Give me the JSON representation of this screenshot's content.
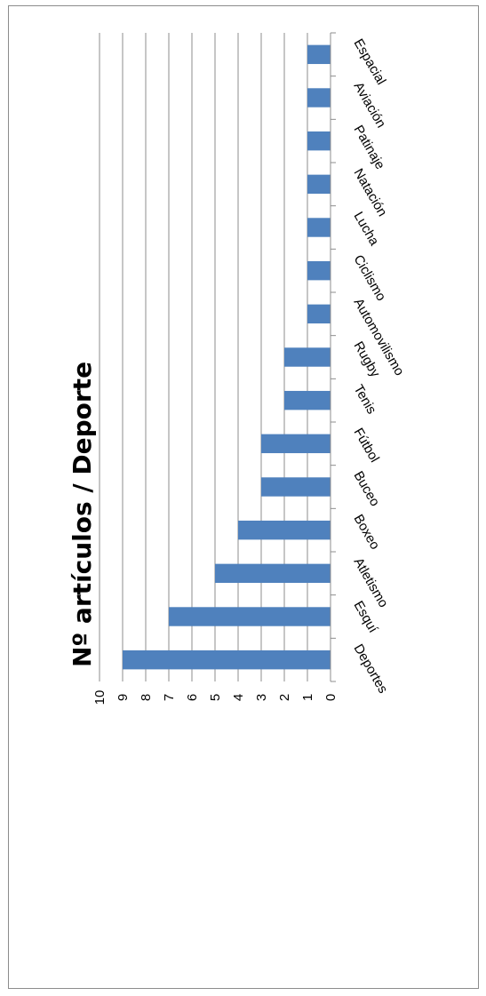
{
  "chart_data": {
    "type": "bar",
    "title": "Nº artículos / Deporte",
    "categories": [
      "Deportes",
      "Esquí",
      "Atletismo",
      "Boxeo",
      "Buceo",
      "Fútbol",
      "Tenis",
      "Rugby",
      "Automovilismo",
      "Ciclismo",
      "Lucha",
      "Natación",
      "Patinaje",
      "Aviación",
      "Espacial"
    ],
    "values": [
      9,
      7,
      5,
      4,
      3,
      3,
      2,
      2,
      1,
      1,
      1,
      1,
      1,
      1,
      1
    ],
    "ylim": [
      0,
      10
    ],
    "yticks": [
      "0",
      "1",
      "2",
      "3",
      "4",
      "5",
      "6",
      "7",
      "8",
      "9",
      "10"
    ],
    "xlabel": "",
    "ylabel": "",
    "grid": true,
    "legend": "none",
    "orientation": "rotated-90-clockwise",
    "colors": {
      "bar": "#4f81bd",
      "grid": "#8c8c8c",
      "axis": "#8c8c8c"
    }
  }
}
